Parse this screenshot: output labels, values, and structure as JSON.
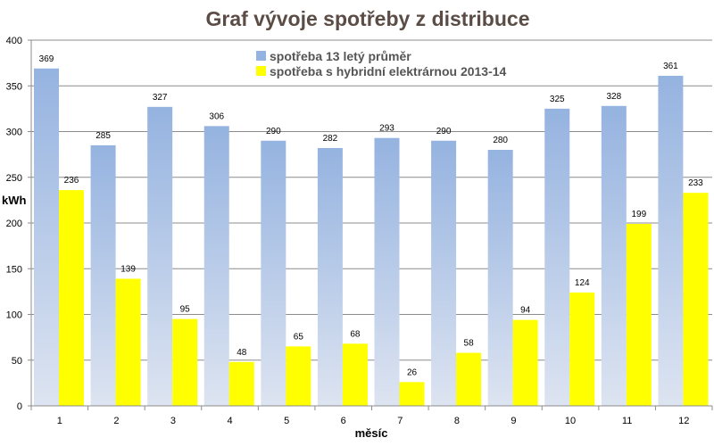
{
  "chart_data": {
    "type": "bar",
    "title": "Graf vývoje spotřeby z distribuce",
    "xlabel": "měsíc",
    "ylabel": "kWh",
    "ylim": [
      0,
      400
    ],
    "yticks": [
      0,
      50,
      100,
      150,
      200,
      250,
      300,
      350,
      400
    ],
    "grid": true,
    "legend_position": "top-center",
    "categories": [
      "1",
      "2",
      "3",
      "4",
      "5",
      "6",
      "7",
      "8",
      "9",
      "10",
      "11",
      "12"
    ],
    "series": [
      {
        "name": "spotřeba 13 letý průměr",
        "color": "#95b3e0",
        "values": [
          369,
          285,
          327,
          306,
          290,
          282,
          293,
          290,
          280,
          325,
          328,
          361
        ]
      },
      {
        "name": "spotřeba s hybridní elektrárnou 2013-14",
        "color": "#ffff00",
        "values": [
          236,
          139,
          95,
          48,
          65,
          68,
          26,
          58,
          94,
          124,
          199,
          233
        ]
      }
    ]
  }
}
